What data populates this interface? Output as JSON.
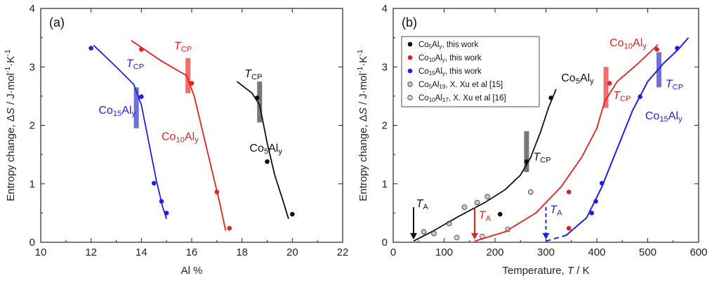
{
  "chart_data": [
    {
      "type": "line",
      "panel_label": "(a)",
      "xlabel": "Al %",
      "ylabel": "Entropy change, ΔS / J·mol⁻¹·K⁻¹",
      "xlim": [
        10,
        22
      ],
      "ylim": [
        0,
        4
      ],
      "xticks": [
        10,
        12,
        14,
        16,
        18,
        20,
        22
      ],
      "yticks": [
        0,
        1,
        2,
        3,
        4
      ],
      "grid": false,
      "series": [
        {
          "label_base": "Co",
          "label_sub": "15",
          "label_mid": "Al",
          "label_sub2": "y",
          "color": "#1f1fe6",
          "points": [
            [
              12.0,
              3.32
            ],
            [
              14.0,
              2.49
            ],
            [
              14.5,
              1.01
            ],
            [
              14.8,
              0.7
            ],
            [
              15.0,
              0.5
            ]
          ],
          "fit": [
            [
              12.1,
              3.37
            ],
            [
              13.0,
              3.0
            ],
            [
              13.7,
              2.7
            ],
            [
              14.0,
              2.35
            ],
            [
              14.3,
              1.7
            ],
            [
              14.6,
              1.05
            ],
            [
              14.85,
              0.6
            ],
            [
              15.0,
              0.4
            ]
          ]
        },
        {
          "label_base": "Co",
          "label_sub": "10",
          "label_mid": "Al",
          "label_sub2": "y",
          "color": "#e61f1f",
          "points": [
            [
              14.0,
              3.3
            ],
            [
              16.0,
              2.72
            ],
            [
              17.0,
              0.86
            ],
            [
              17.5,
              0.24
            ]
          ],
          "fit": [
            [
              13.6,
              3.45
            ],
            [
              14.8,
              3.1
            ],
            [
              15.8,
              2.85
            ],
            [
              16.1,
              2.5
            ],
            [
              16.6,
              1.6
            ],
            [
              17.1,
              0.7
            ],
            [
              17.35,
              0.2
            ]
          ]
        },
        {
          "label_base": "Co",
          "label_sub": "5",
          "label_mid": "Al",
          "label_sub2": "y",
          "color": "#111111",
          "points": [
            [
              18.6,
              2.47
            ],
            [
              19.0,
              1.38
            ],
            [
              20.0,
              0.48
            ]
          ],
          "fit": [
            [
              17.8,
              2.75
            ],
            [
              18.4,
              2.55
            ],
            [
              18.7,
              2.35
            ],
            [
              19.0,
              1.7
            ],
            [
              19.3,
              1.15
            ],
            [
              19.6,
              0.75
            ],
            [
              19.85,
              0.4
            ]
          ]
        }
      ],
      "annotations": [
        {
          "text": "T",
          "sub": "CP",
          "x": 13.4,
          "y": 3.0,
          "color": "#1f1fe6"
        },
        {
          "text": "T",
          "sub": "CP",
          "x": 15.3,
          "y": 3.3,
          "color": "#e61f1f"
        },
        {
          "text": "T",
          "sub": "CP",
          "x": 18.1,
          "y": 2.82,
          "color": "#111111"
        }
      ],
      "tcp_bars": [
        {
          "x": 13.8,
          "y0": 1.95,
          "y1": 2.65,
          "color": "#6f6fe0"
        },
        {
          "x": 15.85,
          "y0": 2.55,
          "y1": 3.15,
          "color": "#ef6f6f"
        },
        {
          "x": 18.7,
          "y0": 2.05,
          "y1": 2.75,
          "color": "#777777"
        }
      ],
      "series_labels": [
        {
          "x": 12.3,
          "y": 2.2,
          "series": 0
        },
        {
          "x": 14.8,
          "y": 1.75,
          "series": 1
        },
        {
          "x": 18.3,
          "y": 1.55,
          "series": 2
        }
      ]
    },
    {
      "type": "line",
      "panel_label": "(b)",
      "xlabel": "Temperature, T / K",
      "ylabel": "Entropy change, ΔS / J·mol⁻¹·K⁻¹",
      "xlim": [
        0,
        600
      ],
      "ylim": [
        0,
        4
      ],
      "xticks": [
        0,
        100,
        200,
        300,
        400,
        500,
        600
      ],
      "yticks": [
        0,
        1,
        2,
        3,
        4
      ],
      "grid": false,
      "legend": {
        "position": "top-left",
        "entries": [
          {
            "a": "Co",
            "s": "5",
            "b": "Al",
            "s2": "y",
            "c": ", this work",
            "color": "#111111",
            "open": false
          },
          {
            "a": "Co",
            "s": "10",
            "b": "Al",
            "s2": "y",
            "c": ", this work",
            "color": "#e61f1f",
            "open": false
          },
          {
            "a": "Co",
            "s": "15",
            "b": "Al",
            "s2": "y",
            "c": ", this work",
            "color": "#1f1fe6",
            "open": false
          },
          {
            "a": "Co",
            "s": "5",
            "b": "Al",
            "s2": "19",
            "c": ", X. Xu et al [15]",
            "color": "#9a9a9a",
            "open": true
          },
          {
            "a": "Co",
            "s": "10",
            "b": "Al",
            "s2": "17",
            "c": ", X. Xu et al [16]",
            "color": "#f09a9a",
            "open": true
          }
        ]
      },
      "series": [
        {
          "color": "#111111",
          "filled": true,
          "points": [
            [
              210,
              0.48
            ],
            [
              262,
              1.38
            ],
            [
              310,
              2.47
            ]
          ],
          "fit": [
            [
              40,
              0.02
            ],
            [
              80,
              0.2
            ],
            [
              130,
              0.45
            ],
            [
              180,
              0.68
            ],
            [
              220,
              0.9
            ],
            [
              250,
              1.15
            ],
            [
              270,
              1.45
            ],
            [
              290,
              1.9
            ],
            [
              305,
              2.3
            ],
            [
              320,
              2.62
            ]
          ]
        },
        {
          "color": "#e61f1f",
          "filled": true,
          "points": [
            [
              345,
              0.86
            ],
            [
              345,
              0.24
            ],
            [
              425,
              2.72
            ],
            [
              518,
              3.3
            ]
          ],
          "fit": [
            [
              160,
              0.02
            ],
            [
              220,
              0.18
            ],
            [
              280,
              0.5
            ],
            [
              330,
              0.95
            ],
            [
              370,
              1.45
            ],
            [
              400,
              1.95
            ],
            [
              415,
              2.4
            ],
            [
              440,
              2.75
            ],
            [
              480,
              3.05
            ],
            [
              520,
              3.38
            ]
          ]
        },
        {
          "color": "#1f1fe6",
          "filled": true,
          "points": [
            [
              390,
              0.5
            ],
            [
              398,
              0.7
            ],
            [
              410,
              1.01
            ],
            [
              485,
              2.49
            ],
            [
              558,
              3.32
            ]
          ],
          "fit": [
            [
              300,
              0.02
            ],
            [
              340,
              0.12
            ],
            [
              380,
              0.42
            ],
            [
              410,
              0.95
            ],
            [
              440,
              1.6
            ],
            [
              470,
              2.25
            ],
            [
              500,
              2.75
            ],
            [
              530,
              3.05
            ],
            [
              560,
              3.3
            ],
            [
              580,
              3.5
            ]
          ],
          "dashed_until": 345
        },
        {
          "color": "#9a9a9a",
          "filled": false,
          "points": [
            [
              60,
              0.18
            ],
            [
              80,
              0.15
            ],
            [
              110,
              0.32
            ],
            [
              140,
              0.6
            ],
            [
              165,
              0.68
            ],
            [
              185,
              0.78
            ]
          ]
        },
        {
          "color": "#f09a9a",
          "filled": false,
          "points": [
            [
              125,
              0.08
            ],
            [
              175,
              0.1
            ],
            [
              225,
              0.22
            ],
            [
              270,
              0.86
            ]
          ]
        }
      ],
      "ta_arrows": [
        {
          "x": 40,
          "y0": 0.6,
          "y1": 0.05,
          "color": "#111111",
          "dashed": false,
          "lx": 45,
          "ly": 0.6
        },
        {
          "x": 160,
          "y0": 0.6,
          "y1": 0.05,
          "color": "#e61f1f",
          "dashed": false,
          "lx": 168,
          "ly": 0.4
        },
        {
          "x": 300,
          "y0": 0.6,
          "y1": 0.05,
          "color": "#1f1fe6",
          "dashed": true,
          "lx": 308,
          "ly": 0.5
        }
      ],
      "ta_label": {
        "text": "T",
        "sub": "A"
      },
      "tcp_bars": [
        {
          "x": 262,
          "y0": 1.2,
          "y1": 1.9,
          "color": "#777777"
        },
        {
          "x": 418,
          "y0": 2.3,
          "y1": 3.0,
          "color": "#ef6f6f"
        },
        {
          "x": 522,
          "y0": 2.65,
          "y1": 3.25,
          "color": "#6f6fe0"
        }
      ],
      "tcp_labels": [
        {
          "x": 275,
          "y": 1.4,
          "color": "#111111"
        },
        {
          "x": 432,
          "y": 2.45,
          "color": "#e61f1f"
        },
        {
          "x": 535,
          "y": 2.65,
          "color": "#1f1fe6"
        }
      ],
      "series_labels": [
        {
          "a": "Co",
          "s": "5",
          "b": "Al",
          "s2": "y",
          "x": 330,
          "y": 2.75,
          "color": "#111111"
        },
        {
          "a": "Co",
          "s": "10",
          "b": "Al",
          "s2": "y",
          "x": 425,
          "y": 3.35,
          "color": "#e61f1f"
        },
        {
          "a": "Co",
          "s": "15",
          "b": "Al",
          "s2": "y",
          "x": 495,
          "y": 2.1,
          "color": "#1f1fe6"
        }
      ]
    }
  ]
}
